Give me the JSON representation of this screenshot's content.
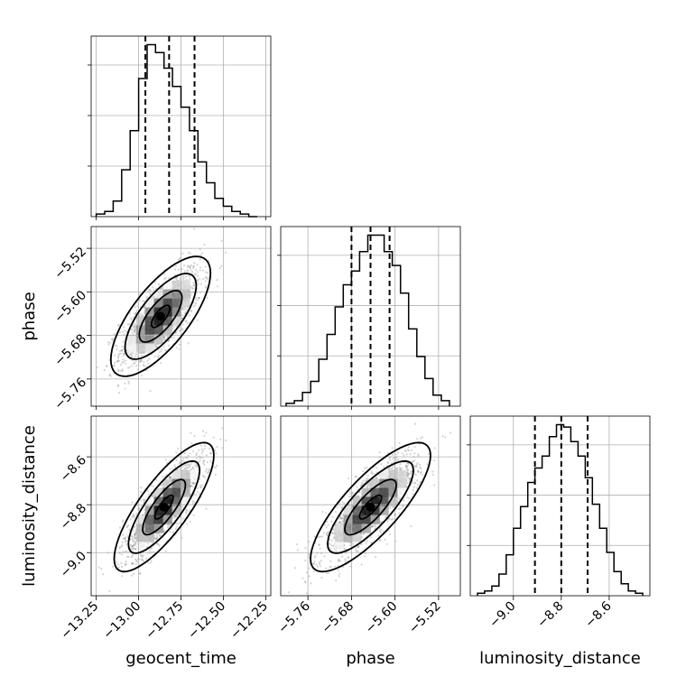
{
  "chart_data": {
    "type": "corner",
    "parameters": [
      "geocent_time",
      "phase",
      "luminosity_distance"
    ],
    "axis_labels": {
      "geocent_time": "geocent_time",
      "phase": "phase",
      "luminosity_distance": "luminosity_distance"
    },
    "ticks": {
      "geocent_time": [
        "−13.25",
        "−13.00",
        "−12.75",
        "−12.50",
        "−12.25"
      ],
      "phase": [
        "−5.76",
        "−5.68",
        "−5.60",
        "−5.52"
      ],
      "luminosity_distance": [
        "−9.0",
        "−8.8",
        "−8.6"
      ]
    },
    "tick_values": {
      "geocent_time": [
        -13.25,
        -13.0,
        -12.75,
        -12.5,
        -12.25
      ],
      "phase": [
        -5.76,
        -5.68,
        -5.6,
        -5.52
      ],
      "luminosity_distance": [
        -9.0,
        -8.8,
        -8.6
      ]
    },
    "ranges": {
      "geocent_time": [
        -13.28,
        -12.22
      ],
      "phase": [
        -5.81,
        -5.48
      ],
      "luminosity_distance": [
        -9.18,
        -8.43
      ]
    },
    "quantiles": {
      "geocent_time": [
        -12.96,
        -12.82,
        -12.67
      ],
      "phase": [
        -5.68,
        -5.645,
        -5.61
      ],
      "luminosity_distance": [
        -8.91,
        -8.8,
        -8.69
      ]
    },
    "histograms": {
      "geocent_time": {
        "bin_edges": [
          -13.25,
          -13.2,
          -13.15,
          -13.1,
          -13.05,
          -13.0,
          -12.95,
          -12.9,
          -12.85,
          -12.8,
          -12.75,
          -12.7,
          -12.65,
          -12.6,
          -12.55,
          -12.5,
          -12.45,
          -12.4,
          -12.35,
          -12.3
        ],
        "counts": [
          1,
          2,
          6,
          18,
          33,
          53,
          66,
          63,
          57,
          50,
          42,
          33,
          21,
          13,
          7,
          4,
          2,
          1,
          0
        ]
      },
      "phase": {
        "bin_edges": [
          -5.8,
          -5.785,
          -5.77,
          -5.755,
          -5.74,
          -5.725,
          -5.71,
          -5.695,
          -5.68,
          -5.665,
          -5.65,
          -5.635,
          -5.62,
          -5.605,
          -5.59,
          -5.575,
          -5.56,
          -5.545,
          -5.53,
          -5.515,
          -5.5
        ],
        "counts": [
          1,
          2,
          5,
          9,
          17,
          26,
          36,
          44,
          49,
          56,
          62,
          62,
          56,
          51,
          41,
          28,
          18,
          10,
          4,
          2
        ]
      },
      "luminosity_distance": {
        "bin_edges": [
          -9.15,
          -9.12,
          -9.09,
          -9.06,
          -9.03,
          -9.0,
          -8.97,
          -8.94,
          -8.91,
          -8.88,
          -8.85,
          -8.82,
          -8.79,
          -8.76,
          -8.73,
          -8.7,
          -8.67,
          -8.64,
          -8.61,
          -8.58,
          -8.55,
          -8.52,
          -8.49,
          -8.46
        ],
        "counts": [
          1,
          2,
          4,
          9,
          17,
          28,
          37,
          47,
          53,
          58,
          66,
          71,
          70,
          64,
          58,
          49,
          38,
          28,
          18,
          10,
          5,
          2,
          1
        ]
      }
    },
    "scatter_2d": [
      {
        "x": "geocent_time",
        "y": "phase",
        "center": [
          -12.87,
          -5.645
        ],
        "spread": [
          0.12,
          0.045
        ],
        "correlation": 0.72
      },
      {
        "x": "geocent_time",
        "y": "luminosity_distance",
        "center": [
          -12.85,
          -8.81
        ],
        "spread": [
          0.12,
          0.11
        ],
        "correlation": 0.8
      },
      {
        "x": "phase",
        "y": "luminosity_distance",
        "center": [
          -5.645,
          -8.81
        ],
        "spread": [
          0.045,
          0.11
        ],
        "correlation": 0.8
      }
    ],
    "grid": true,
    "colors": {
      "line": "#000000",
      "grid": "#b0b0b0",
      "points": "#888888"
    }
  }
}
